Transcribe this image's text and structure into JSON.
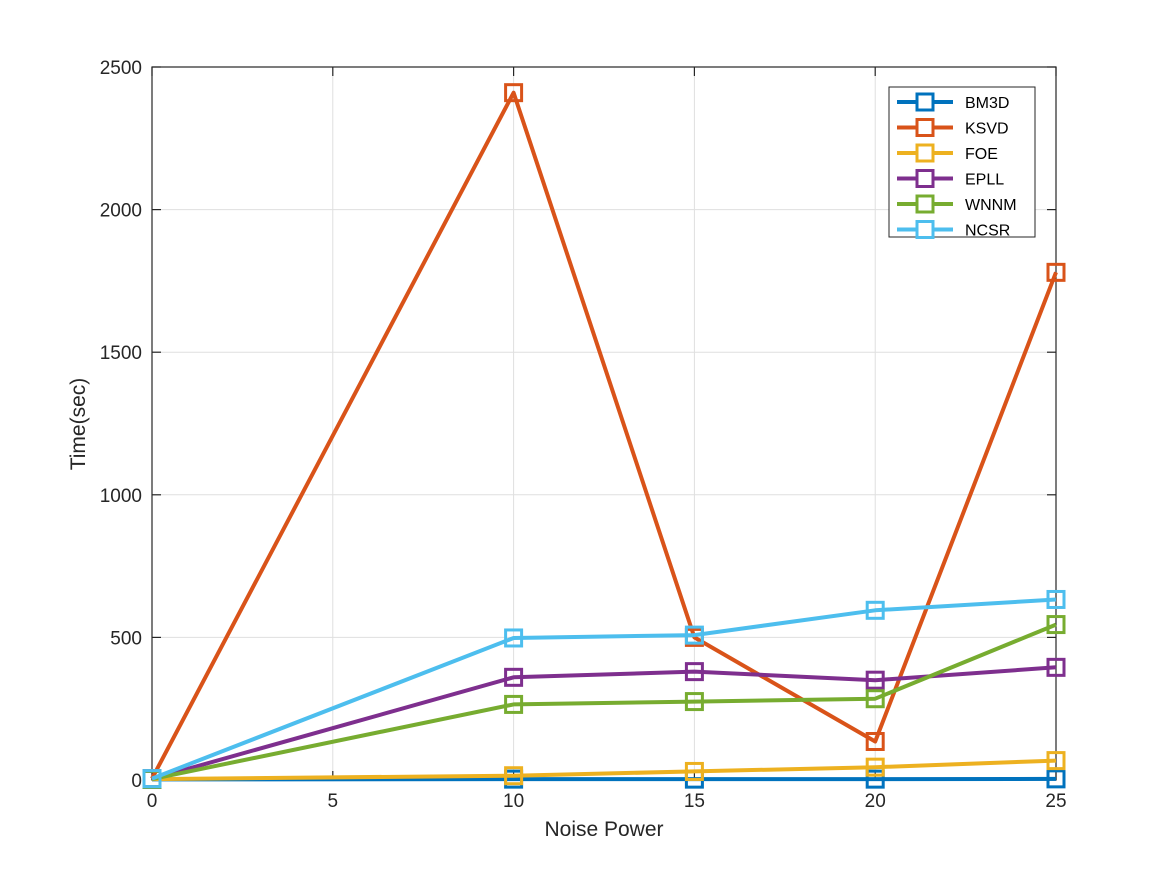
{
  "chart_data": {
    "type": "line",
    "title": "",
    "xlabel": "Noise Power",
    "ylabel": "Time(sec)",
    "xlim": [
      0,
      25
    ],
    "ylim": [
      0,
      2500
    ],
    "xticks": [
      0,
      5,
      10,
      15,
      20,
      25
    ],
    "xtick_labels": [
      "0",
      "5",
      "10",
      "15",
      "20",
      "25"
    ],
    "yticks": [
      0,
      500,
      1000,
      1500,
      2000,
      2500
    ],
    "ytick_labels": [
      "0",
      "500",
      "1000",
      "1500",
      "2000",
      "2500"
    ],
    "grid": true,
    "legend_position": "top-right",
    "marker": "square",
    "x": [
      0,
      10,
      15,
      20,
      25
    ],
    "series": [
      {
        "name": "BM3D",
        "color": "#0072BD",
        "values": [
          2,
          3,
          3,
          3,
          4
        ]
      },
      {
        "name": "KSVD",
        "color": "#D95319",
        "values": [
          5,
          2410,
          500,
          135,
          1780
        ]
      },
      {
        "name": "FOE",
        "color": "#EDB120",
        "values": [
          3,
          15,
          30,
          45,
          68
        ]
      },
      {
        "name": "EPLL",
        "color": "#7E2F8E",
        "values": [
          4,
          360,
          380,
          350,
          395
        ]
      },
      {
        "name": "WNNM",
        "color": "#77AC30",
        "values": [
          3,
          265,
          275,
          285,
          545
        ]
      },
      {
        "name": "NCSR",
        "color": "#4DBEEE",
        "values": [
          5,
          498,
          508,
          595,
          633
        ]
      }
    ]
  }
}
